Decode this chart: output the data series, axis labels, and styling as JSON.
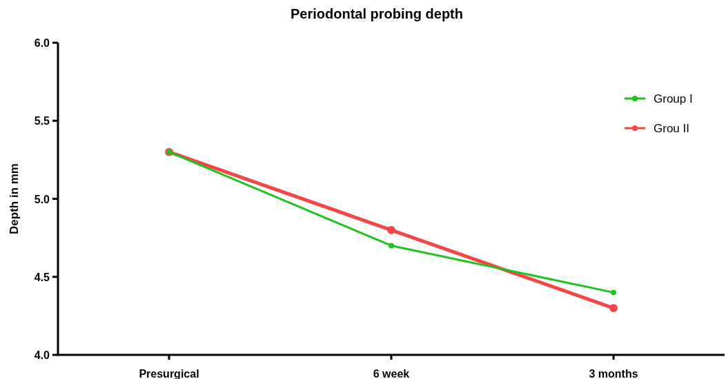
{
  "chart_data": {
    "type": "line",
    "title": "Periodontal probing depth",
    "ylabel": "Depth in mm",
    "categories": [
      "Presurgical",
      "6 week",
      "3 months"
    ],
    "series": [
      {
        "name": "Group I",
        "color": "#1ec31e",
        "values": [
          5.3,
          4.7,
          4.4
        ]
      },
      {
        "name": "Grou II",
        "color": "#f54545",
        "values": [
          5.3,
          4.8,
          4.3
        ]
      }
    ],
    "ylim": [
      4,
      6
    ],
    "yticks": [
      {
        "value": 4,
        "label": "4.0"
      },
      {
        "value": 4.5,
        "label": "4.5"
      },
      {
        "value": 5,
        "label": "5.0"
      },
      {
        "value": 5.5,
        "label": "5.5"
      },
      {
        "value": 6,
        "label": "6.0"
      }
    ],
    "grid": false,
    "legend": "top right",
    "marker": "circle",
    "line_style": "solid"
  }
}
